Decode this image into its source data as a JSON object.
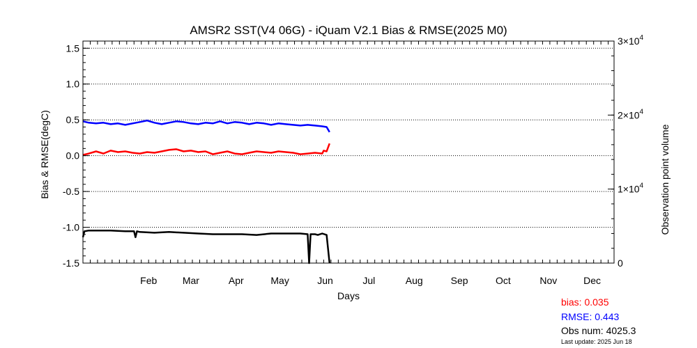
{
  "chart_data": {
    "type": "line",
    "title": "AMSR2 SST(V4 06G) - iQuam V2.1 Bias & RMSE(2025 M0)",
    "xlabel": "Days",
    "ylabel": "Bias & RMSE(degC)",
    "y2label": "Observation point volume",
    "ylim": [
      -1.5,
      1.6
    ],
    "y2lim": [
      0,
      30000
    ],
    "xlim_day": [
      1,
      365
    ],
    "y_ticks": [
      "1.5",
      "1.0",
      "0.5",
      "0.0",
      "-0.5",
      "-1.0",
      "-1.5"
    ],
    "y2_ticks": [
      {
        "value": 30000,
        "base": "3×10",
        "exp": "4"
      },
      {
        "value": 20000,
        "base": "2×10",
        "exp": "4"
      },
      {
        "value": 10000,
        "base": "1×10",
        "exp": "4"
      },
      {
        "value": 0,
        "base": "0",
        "exp": ""
      }
    ],
    "month_labels": [
      "Feb",
      "Mar",
      "Apr",
      "May",
      "Jun",
      "Jul",
      "Aug",
      "Sep",
      "Oct",
      "Nov",
      "Dec"
    ],
    "month_label_days": [
      46,
      75,
      106,
      136,
      167,
      197,
      228,
      259,
      289,
      320,
      350
    ],
    "grid": "horizontal dotted",
    "series": [
      {
        "color": "#ff0000",
        "axis": "left",
        "x": [
          1,
          5,
          10,
          15,
          20,
          25,
          30,
          35,
          40,
          45,
          50,
          55,
          60,
          65,
          70,
          75,
          80,
          85,
          90,
          95,
          100,
          105,
          110,
          115,
          120,
          125,
          130,
          135,
          140,
          145,
          150,
          155,
          160,
          165,
          166,
          168,
          170
        ],
        "y": [
          0.01,
          0.03,
          0.06,
          0.03,
          0.07,
          0.05,
          0.06,
          0.04,
          0.03,
          0.05,
          0.04,
          0.06,
          0.08,
          0.09,
          0.06,
          0.07,
          0.05,
          0.06,
          0.02,
          0.04,
          0.06,
          0.03,
          0.02,
          0.04,
          0.06,
          0.05,
          0.04,
          0.06,
          0.05,
          0.04,
          0.02,
          0.03,
          0.04,
          0.03,
          0.07,
          0.06,
          0.17
        ]
      },
      {
        "color": "#0000ff",
        "axis": "left",
        "x": [
          1,
          5,
          10,
          15,
          20,
          25,
          30,
          35,
          40,
          45,
          50,
          55,
          60,
          65,
          70,
          75,
          80,
          85,
          90,
          95,
          100,
          105,
          110,
          115,
          120,
          125,
          130,
          135,
          140,
          145,
          150,
          155,
          160,
          165,
          168,
          170
        ],
        "y": [
          0.48,
          0.46,
          0.45,
          0.46,
          0.44,
          0.45,
          0.43,
          0.45,
          0.47,
          0.49,
          0.46,
          0.44,
          0.46,
          0.48,
          0.47,
          0.45,
          0.44,
          0.46,
          0.45,
          0.48,
          0.45,
          0.47,
          0.46,
          0.44,
          0.46,
          0.45,
          0.43,
          0.45,
          0.44,
          0.43,
          0.42,
          0.43,
          0.42,
          0.41,
          0.4,
          0.33
        ]
      },
      {
        "color": "#000000",
        "axis": "right",
        "x": [
          1,
          2,
          5,
          10,
          20,
          30,
          36,
          37,
          38,
          40,
          50,
          60,
          70,
          80,
          90,
          100,
          110,
          120,
          130,
          140,
          150,
          155,
          156,
          157,
          160,
          162,
          165,
          168,
          170
        ],
        "y": [
          3500,
          4300,
          4400,
          4400,
          4400,
          4300,
          4300,
          3500,
          4300,
          4200,
          4100,
          4200,
          4100,
          4000,
          3900,
          3900,
          3900,
          3800,
          4000,
          4000,
          4000,
          3900,
          0,
          3900,
          3900,
          3800,
          4000,
          3800,
          0
        ]
      }
    ]
  },
  "stats": {
    "bias": "bias: 0.035",
    "rmse": "RMSE: 0.443",
    "obs": "Obs num: 4025.3",
    "updated": "Last update: 2025 Jun 18"
  }
}
